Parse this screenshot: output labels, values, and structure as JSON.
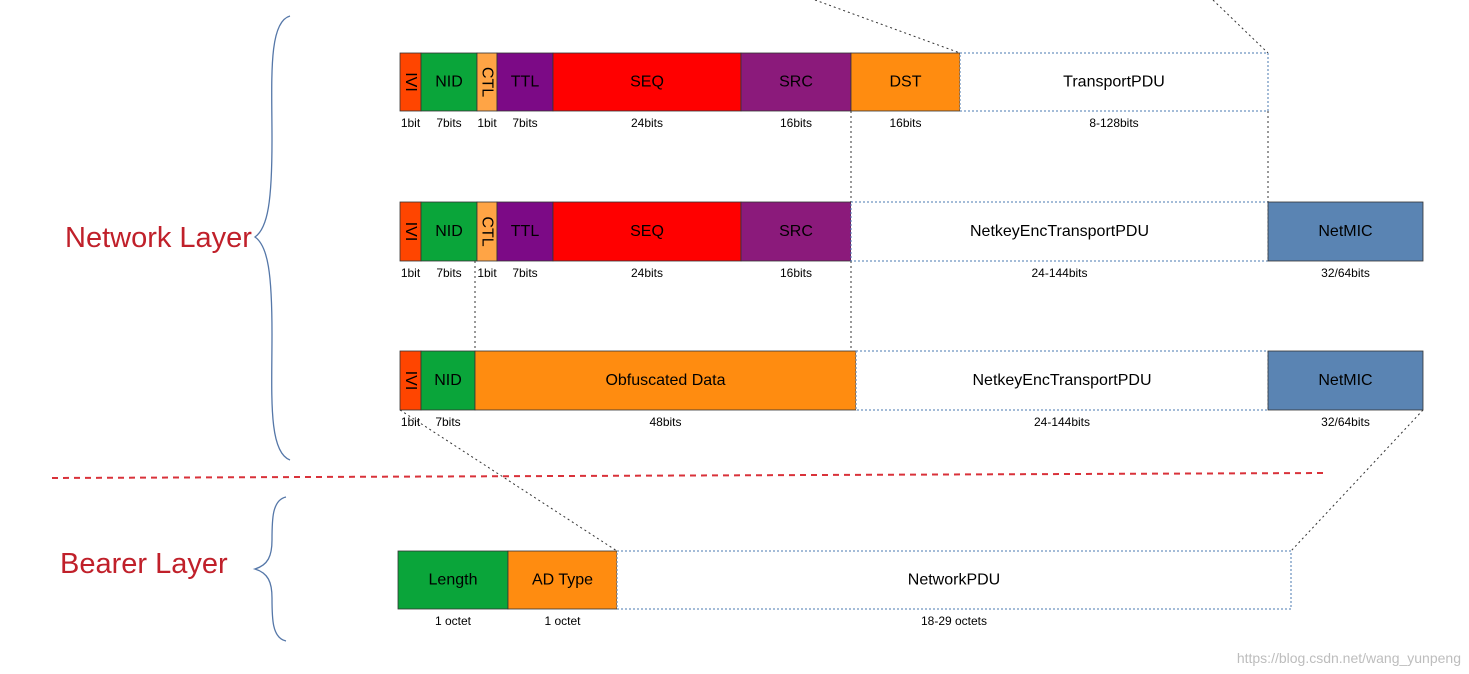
{
  "layers": {
    "network": {
      "title": "Network Layer"
    },
    "bearer": {
      "title": "Bearer Layer"
    }
  },
  "colors": {
    "ivi": "#ff4500",
    "nid": "#0aa53a",
    "ctl": "#ffa445",
    "ttl": "#7c0a86",
    "seq": "#ff0000",
    "src": "#8b1a7b",
    "dst": "#ff8c10",
    "netmic": "#5a84b3",
    "obfuscated": "#ff8c10",
    "length": "#0aa53a",
    "adtype": "#ff8c10",
    "divider": "#d9323a",
    "guide": "#333333",
    "dotted_box": "#4a78b0",
    "brace": "#5577a8"
  },
  "rows": [
    {
      "id": "row1",
      "fields": [
        {
          "key": "ivi",
          "label": "IVI",
          "vertical": true,
          "size": "1bit",
          "fill": "ivi"
        },
        {
          "key": "nid",
          "label": "NID",
          "size": "7bits",
          "fill": "nid"
        },
        {
          "key": "ctl",
          "label": "CTL",
          "vertical": true,
          "size": "1bit",
          "fill": "ctl"
        },
        {
          "key": "ttl",
          "label": "TTL",
          "size": "7bits",
          "fill": "ttl",
          "textColor": "#ffffff"
        },
        {
          "key": "seq",
          "label": "SEQ",
          "size": "24bits",
          "fill": "seq"
        },
        {
          "key": "src",
          "label": "SRC",
          "size": "16bits",
          "fill": "src"
        },
        {
          "key": "dst",
          "label": "DST",
          "size": "16bits",
          "fill": "dst"
        },
        {
          "key": "transport",
          "label": "TransportPDU",
          "size": "8-128bits",
          "fill": "none",
          "dotted": true
        }
      ]
    },
    {
      "id": "row2",
      "fields": [
        {
          "key": "ivi",
          "label": "IVI",
          "vertical": true,
          "size": "1bit",
          "fill": "ivi"
        },
        {
          "key": "nid",
          "label": "NID",
          "size": "7bits",
          "fill": "nid"
        },
        {
          "key": "ctl",
          "label": "CTL",
          "vertical": true,
          "size": "1bit",
          "fill": "ctl"
        },
        {
          "key": "ttl",
          "label": "TTL",
          "size": "7bits",
          "fill": "ttl",
          "textColor": "#ffffff"
        },
        {
          "key": "seq",
          "label": "SEQ",
          "size": "24bits",
          "fill": "seq"
        },
        {
          "key": "src",
          "label": "SRC",
          "size": "16bits",
          "fill": "src"
        },
        {
          "key": "enc",
          "label": "NetkeyEncTransportPDU",
          "size": "24-144bits",
          "fill": "none",
          "dotted": true
        },
        {
          "key": "netmic",
          "label": "NetMIC",
          "size": "32/64bits",
          "fill": "netmic"
        }
      ]
    },
    {
      "id": "row3",
      "fields": [
        {
          "key": "ivi",
          "label": "IVI",
          "vertical": true,
          "size": "1bit",
          "fill": "ivi"
        },
        {
          "key": "nid",
          "label": "NID",
          "size": "7bits",
          "fill": "nid"
        },
        {
          "key": "obf",
          "label": "Obfuscated Data",
          "size": "48bits",
          "fill": "obfuscated"
        },
        {
          "key": "enc",
          "label": "NetkeyEncTransportPDU",
          "size": "24-144bits",
          "fill": "none",
          "dotted": true
        },
        {
          "key": "netmic",
          "label": "NetMIC",
          "size": "32/64bits",
          "fill": "netmic"
        }
      ]
    },
    {
      "id": "row4",
      "fields": [
        {
          "key": "length",
          "label": "Length",
          "size": "1 octet",
          "fill": "length"
        },
        {
          "key": "adtype",
          "label": "AD Type",
          "size": "1 octet",
          "fill": "adtype"
        },
        {
          "key": "netpdu",
          "label": "NetworkPDU",
          "size": "18-29 octets",
          "fill": "none",
          "dotted": true
        }
      ]
    }
  ],
  "watermark": "https://blog.csdn.net/wang_yunpeng"
}
